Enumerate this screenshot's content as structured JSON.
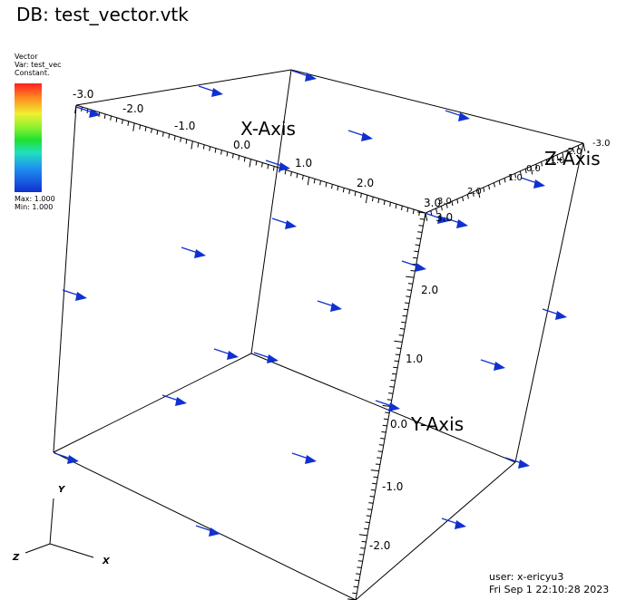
{
  "title": "DB: test_vector.vtk",
  "legend": {
    "type_label": "Vector",
    "var_label": "Var: test_vec",
    "mode_label": "Constant.",
    "max_label": "Max:  1.000",
    "min_label": "Min:  1.000"
  },
  "axes": {
    "x_title": "X-Axis",
    "y_title": "Y-Axis",
    "z_title": "Z-Axis",
    "x_ticks": [
      "-3.0",
      "-2.0",
      "-1.0",
      "0.0",
      "1.0",
      "2.0",
      "3.0"
    ],
    "y_ticks": [
      "3.0",
      "2.0",
      "1.0",
      "0.0",
      "-1.0",
      "-2.0"
    ],
    "z_ticks": [
      "-3.0",
      "-2.0",
      "-1.0",
      "0.0",
      "1.0",
      "2.0",
      "3.0"
    ]
  },
  "triad": {
    "x": "X",
    "y": "Y",
    "z": "Z"
  },
  "user_info": {
    "user": "user: x-ericyu3",
    "date": "Fri Sep  1 22:10:28 2023"
  },
  "colors": {
    "vector": "#1030d0",
    "box": "#000000",
    "background": "#ffffff"
  }
}
